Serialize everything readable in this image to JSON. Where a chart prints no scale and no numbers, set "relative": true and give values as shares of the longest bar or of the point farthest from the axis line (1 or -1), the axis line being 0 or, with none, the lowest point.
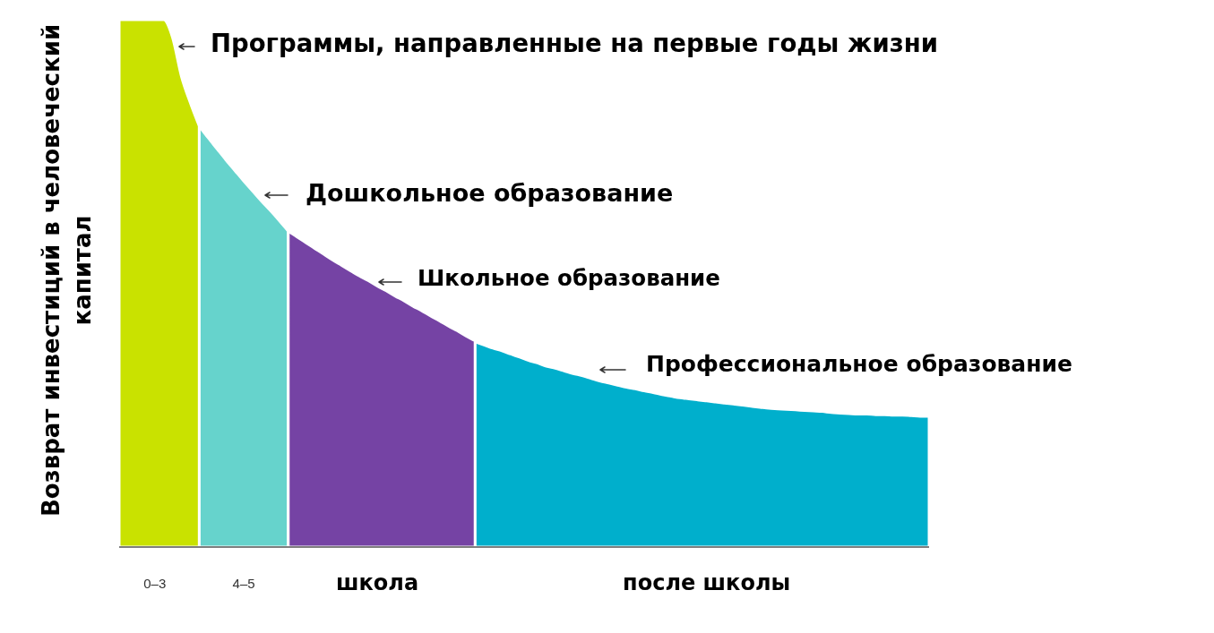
{
  "chart_data": {
    "type": "area",
    "relative": true,
    "ylabel": "Возврат инвестиций в человеческий капитал",
    "categories": [
      null,
      null,
      null,
      null,
      "0–3",
      null,
      null,
      null,
      null,
      null,
      null,
      null,
      null,
      null,
      "4–5",
      null,
      null,
      null,
      null,
      null,
      null,
      null,
      null,
      null,
      null,
      null,
      null,
      null,
      null,
      "школа",
      null,
      null,
      null,
      null,
      null,
      null,
      null,
      null,
      null,
      null,
      null,
      null,
      null,
      null,
      null,
      null,
      null,
      null,
      null,
      null,
      null,
      null,
      null,
      null,
      null,
      null,
      null,
      null,
      null,
      null,
      null,
      null,
      null,
      null,
      null,
      null,
      "после школы",
      null,
      null,
      null,
      null,
      null,
      null,
      null,
      null,
      null,
      null,
      null,
      null,
      null,
      null,
      null,
      null,
      null,
      null,
      null,
      null,
      null,
      null,
      null,
      null,
      null
    ],
    "series": [
      {
        "color": "#c9e200",
        "values": [
          1,
          1,
          1,
          1,
          1,
          1,
          0.966,
          0.892,
          0.842,
          0.798,
          null,
          null,
          null,
          null,
          null,
          null,
          null,
          null,
          null,
          null,
          null,
          null,
          null,
          null,
          null,
          null,
          null,
          null,
          null,
          null,
          null,
          null,
          null,
          null,
          null,
          null,
          null,
          null,
          null,
          null,
          null,
          null,
          null,
          null,
          null,
          null,
          null,
          null,
          null,
          null,
          null,
          null,
          null,
          null,
          null,
          null,
          null,
          null,
          null,
          null,
          null,
          null,
          null,
          null,
          null,
          null,
          null,
          null,
          null,
          null,
          null,
          null,
          null,
          null,
          null,
          null,
          null,
          null,
          null,
          null,
          null,
          null,
          null,
          null,
          null,
          null,
          null,
          null,
          null,
          null,
          null,
          null
        ]
      },
      {
        "color": "#66d3cc",
        "values": [
          null,
          null,
          null,
          null,
          null,
          null,
          null,
          null,
          null,
          0.798,
          0.776,
          0.755,
          0.734,
          0.714,
          0.694,
          0.675,
          0.656,
          0.638,
          0.619,
          0.599,
          null,
          null,
          null,
          null,
          null,
          null,
          null,
          null,
          null,
          null,
          null,
          null,
          null,
          null,
          null,
          null,
          null,
          null,
          null,
          null,
          null,
          null,
          null,
          null,
          null,
          null,
          null,
          null,
          null,
          null,
          null,
          null,
          null,
          null,
          null,
          null,
          null,
          null,
          null,
          null,
          null,
          null,
          null,
          null,
          null,
          null,
          null,
          null,
          null,
          null,
          null,
          null,
          null,
          null,
          null,
          null,
          null,
          null,
          null,
          null,
          null,
          null,
          null,
          null,
          null,
          null,
          null,
          null,
          null,
          null,
          null,
          null
        ]
      },
      {
        "color": "#7543a4",
        "values": [
          null,
          null,
          null,
          null,
          null,
          null,
          null,
          null,
          null,
          null,
          null,
          null,
          null,
          null,
          null,
          null,
          null,
          null,
          null,
          0.599,
          0.588,
          0.577,
          0.566,
          0.555,
          0.544,
          0.534,
          0.524,
          0.514,
          0.505,
          0.495,
          0.486,
          0.476,
          0.467,
          0.457,
          0.448,
          0.438,
          0.429,
          0.419,
          0.41,
          0.4,
          0.391,
          null,
          null,
          null,
          null,
          null,
          null,
          null,
          null,
          null,
          null,
          null,
          null,
          null,
          null,
          null,
          null,
          null,
          null,
          null,
          null,
          null,
          null,
          null,
          null,
          null,
          null,
          null,
          null,
          null,
          null,
          null,
          null,
          null,
          null,
          null,
          null,
          null,
          null,
          null,
          null,
          null,
          null,
          null,
          null,
          null,
          null,
          null,
          null,
          null,
          null,
          null
        ]
      },
      {
        "color": "#00afcc",
        "values": [
          null,
          null,
          null,
          null,
          null,
          null,
          null,
          null,
          null,
          null,
          null,
          null,
          null,
          null,
          null,
          null,
          null,
          null,
          null,
          null,
          null,
          null,
          null,
          null,
          null,
          null,
          null,
          null,
          null,
          null,
          null,
          null,
          null,
          null,
          null,
          null,
          null,
          null,
          null,
          null,
          0.389,
          0.383,
          0.377,
          0.372,
          0.366,
          0.36,
          0.354,
          0.349,
          0.343,
          0.339,
          0.334,
          0.329,
          0.325,
          0.32,
          0.315,
          0.311,
          0.307,
          0.303,
          0.3,
          0.296,
          0.293,
          0.289,
          0.286,
          0.283,
          0.281,
          0.279,
          0.277,
          0.275,
          0.273,
          0.271,
          0.269,
          0.267,
          0.265,
          0.263,
          0.262,
          0.261,
          0.26,
          0.259,
          0.258,
          0.257,
          0.255,
          0.254,
          0.253,
          0.252,
          0.252,
          0.251,
          0.251,
          0.25,
          0.25,
          0.249,
          0.248,
          0.248
        ]
      }
    ],
    "annotations": [
      "Программы, направленные на первые годы жизни",
      "Дошкольное образование",
      "Школьное образование",
      "Профессиональное образование"
    ]
  }
}
